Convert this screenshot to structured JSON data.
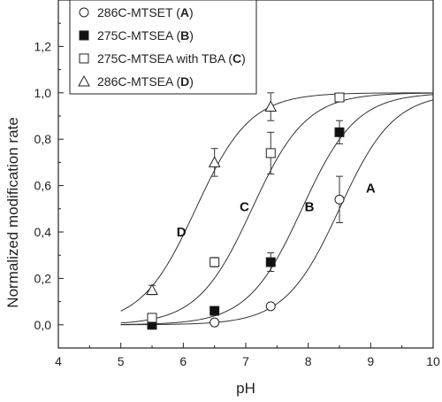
{
  "chart_data": {
    "type": "scatter",
    "xlabel": "pH",
    "ylabel": "Normalized modification rate",
    "xlim": [
      4,
      10
    ],
    "ylim": [
      -0.1,
      1.4
    ],
    "xticks": [
      4,
      5,
      6,
      7,
      8,
      9,
      10
    ],
    "yticks": [
      0.0,
      0.2,
      0.4,
      0.6,
      0.8,
      1.0,
      1.2
    ],
    "ytick_labels": [
      "0,0",
      "0,2",
      "0,4",
      "0,6",
      "0,8",
      "1,0",
      "1,2"
    ],
    "grid": false,
    "legend_position": "top-left",
    "series": [
      {
        "name": "286C-MTSET (A)",
        "legend_main": "286C-MTSET (",
        "legend_letter": "A",
        "legend_close": ")",
        "marker": "circle-open",
        "curve_label": "A",
        "label_at": [
          9.0,
          0.57
        ],
        "pKa": 8.5,
        "x": [
          5.5,
          6.5,
          7.4,
          8.5
        ],
        "y": [
          0.0,
          0.01,
          0.08,
          0.54
        ],
        "err": [
          0.0,
          0.0,
          0.0,
          0.1
        ]
      },
      {
        "name": "275C-MTSEA (B)",
        "legend_main": "275C-MTSEA (",
        "legend_letter": "B",
        "legend_close": ")",
        "marker": "square-filled",
        "curve_label": "B",
        "label_at": [
          8.02,
          0.49
        ],
        "pKa": 7.9,
        "x": [
          5.5,
          6.5,
          7.4,
          8.5
        ],
        "y": [
          0.0,
          0.06,
          0.27,
          0.83
        ],
        "err": [
          0.0,
          0.0,
          0.04,
          0.05
        ]
      },
      {
        "name": "275C-MTSEA with TBA (C)",
        "legend_main": "275C-MTSEA with TBA (",
        "legend_letter": "C",
        "legend_close": ")",
        "marker": "square-open",
        "curve_label": "C",
        "label_at": [
          6.98,
          0.49
        ],
        "pKa": 7.1,
        "x": [
          5.5,
          6.5,
          7.4,
          8.5
        ],
        "y": [
          0.03,
          0.27,
          0.74,
          0.98
        ],
        "err": [
          0.0,
          0.02,
          0.09,
          0.0
        ]
      },
      {
        "name": "286C-MTSEA (D)",
        "legend_main": "286C-MTSEA (",
        "legend_letter": "D",
        "legend_close": ")",
        "marker": "triangle-open",
        "curve_label": "D",
        "label_at": [
          5.97,
          0.38
        ],
        "pKa": 6.2,
        "x": [
          5.5,
          6.5,
          7.4
        ],
        "y": [
          0.15,
          0.7,
          0.94
        ],
        "err": [
          0.02,
          0.06,
          0.06
        ]
      }
    ]
  }
}
